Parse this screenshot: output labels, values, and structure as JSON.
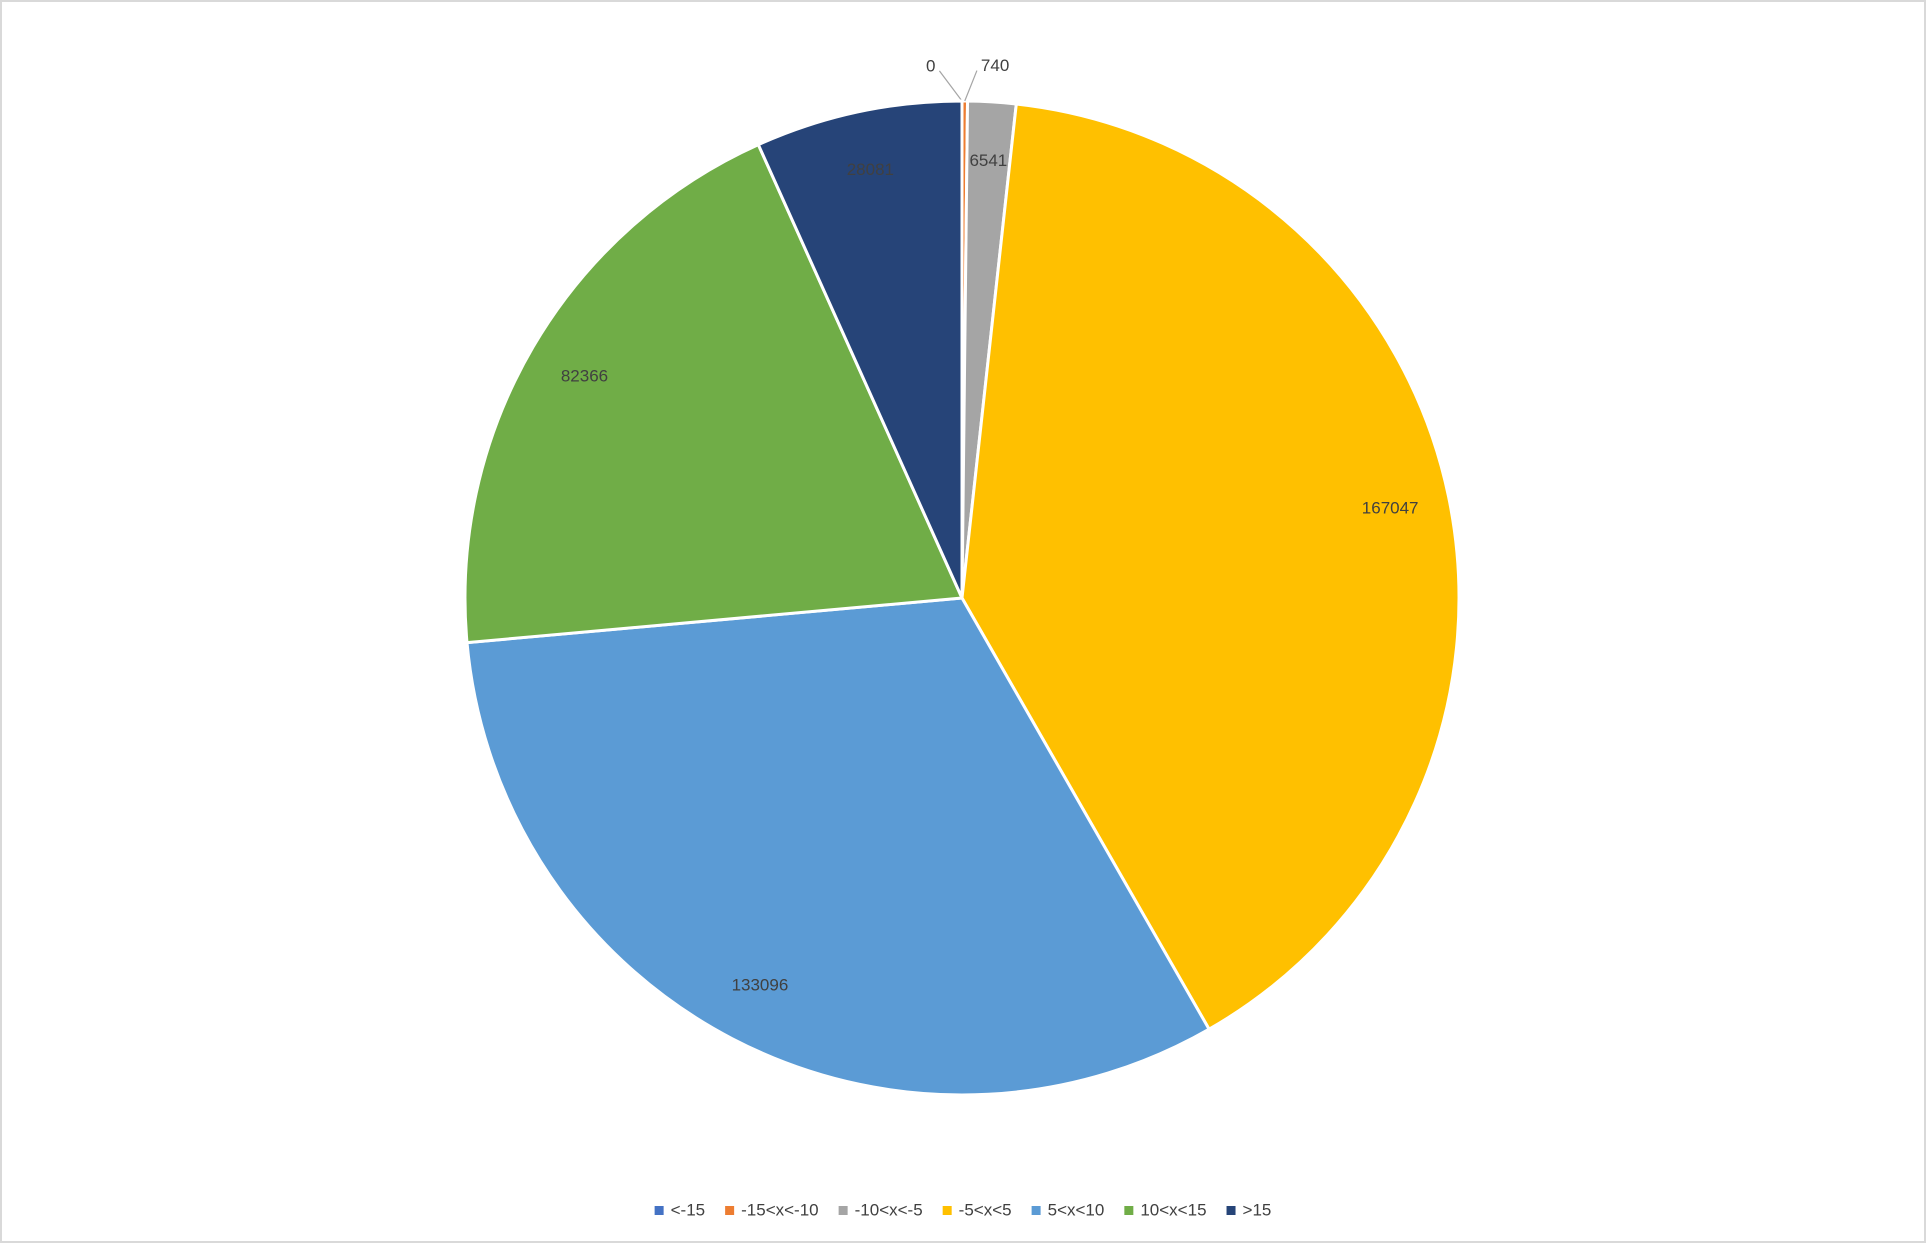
{
  "chart_data": {
    "type": "pie",
    "categories": [
      "<-15",
      "-15<x<-10",
      "-10<x<-5",
      "-5<x<5",
      "5<x<10",
      "10<x<15",
      ">15"
    ],
    "values": [
      0,
      740,
      6541,
      167047,
      133096,
      82366,
      28081
    ],
    "colors": [
      "#4472c4",
      "#ed7d31",
      "#a5a5a5",
      "#ffc000",
      "#5b9bd5",
      "#70ad47",
      "#264478"
    ],
    "legend": "bottom"
  }
}
